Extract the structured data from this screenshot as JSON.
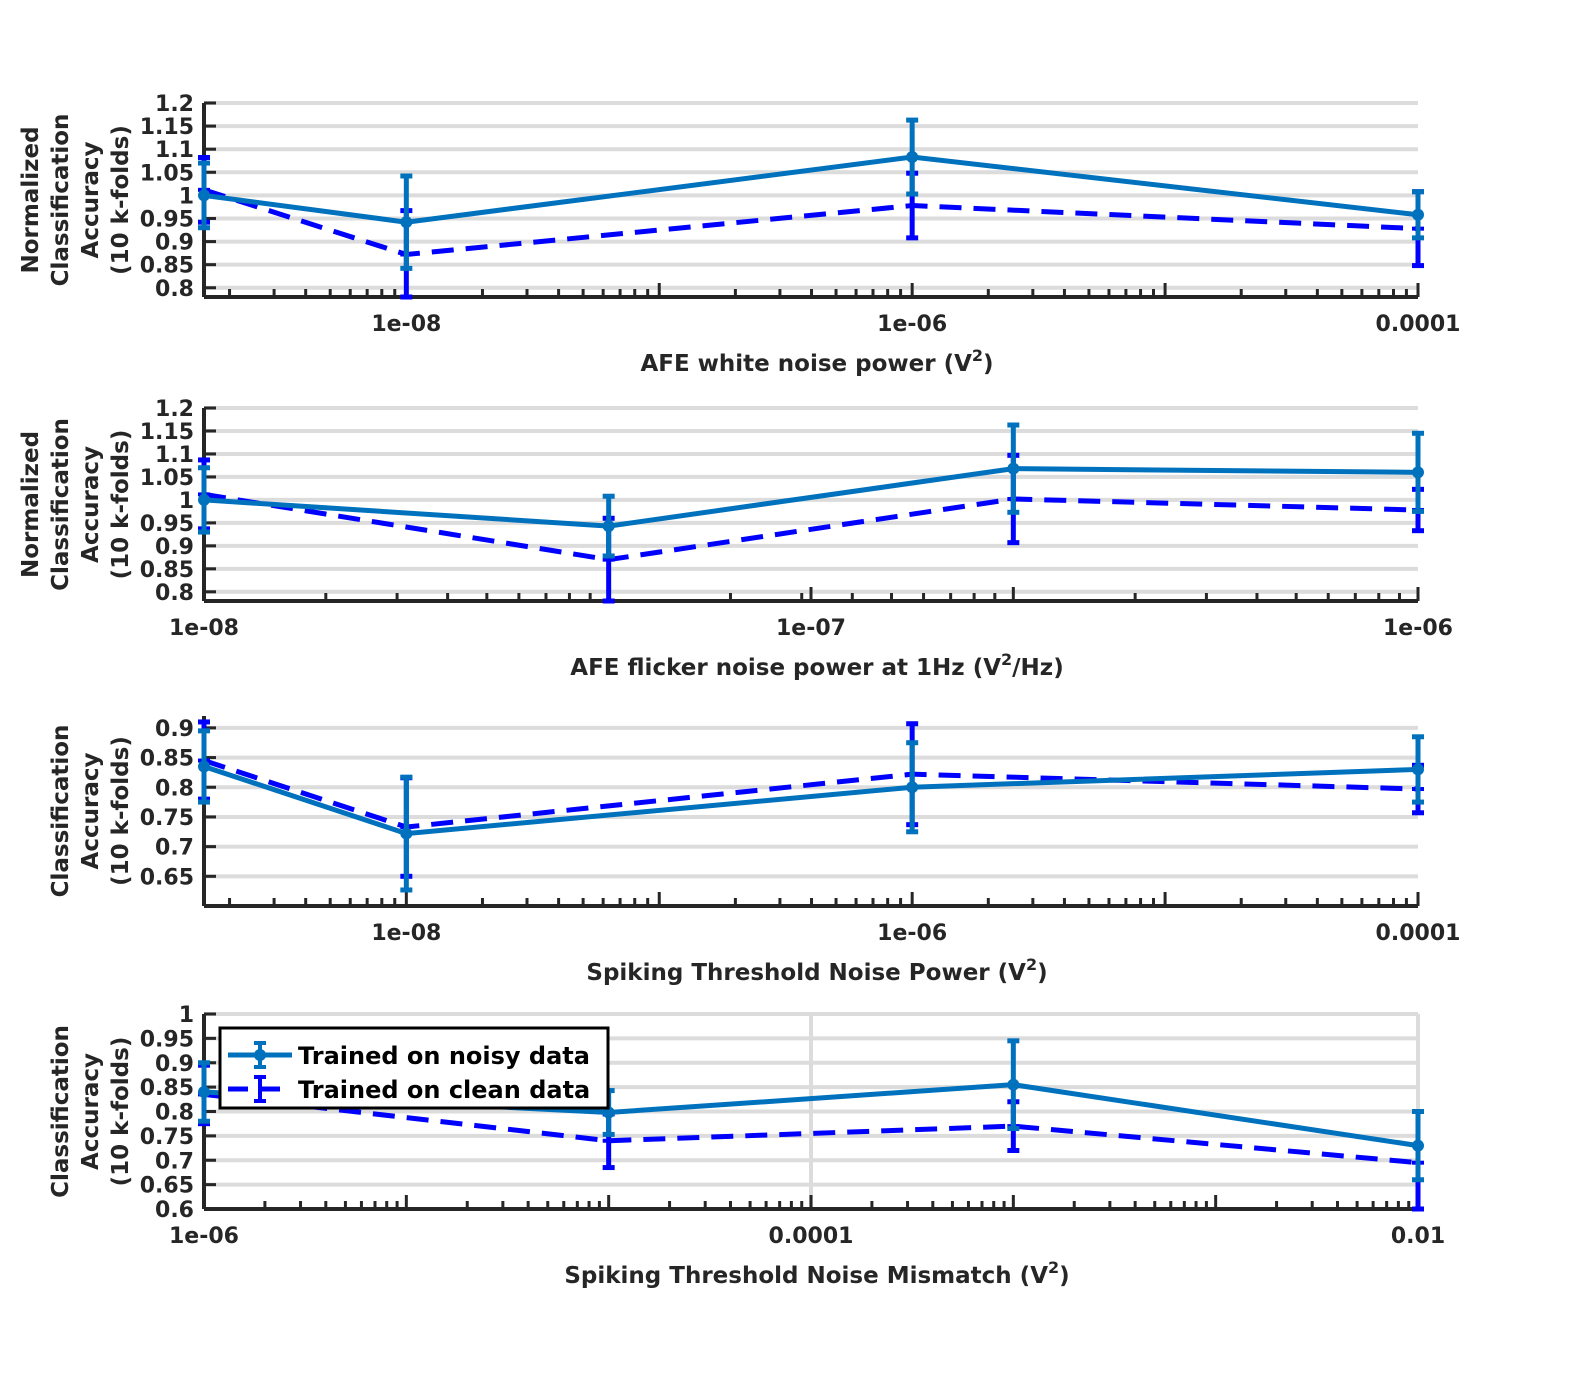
{
  "colors": {
    "noisy": "#0072BD",
    "clean": "#0000FF",
    "grid": "#dcdcdc",
    "axis": "#262626"
  },
  "legend": {
    "noisy_label": "Trained on noisy data",
    "clean_label": "Trained on clean data"
  },
  "chart_data": [
    {
      "type": "line",
      "xscale": "log",
      "xlabel": "AFE white noise power (V",
      "xlabel_sup": "2",
      "xlabel_after": ")",
      "ylabel_lines": [
        "Normalized",
        "Classification",
        "Accuracy",
        "(10 k-folds)"
      ],
      "xlim_exp": [
        -8.8,
        -4
      ],
      "ylim": [
        0.78,
        1.2
      ],
      "yticks": [
        "0.8",
        "0.85",
        "0.9",
        "0.95",
        "1",
        "1.05",
        "1.1",
        "1.15",
        "1.2"
      ],
      "xticks": [
        "1e-08",
        "1e-06",
        "0.0001"
      ],
      "xgrid": false,
      "series": [
        {
          "name": "Trained on noisy data",
          "style": "solid",
          "x_exp": [
            -8.8,
            -8,
            -6,
            -4
          ],
          "y": [
            1.0,
            0.942,
            1.083,
            0.958
          ],
          "err": [
            0.07,
            0.1,
            0.08,
            0.05
          ]
        },
        {
          "name": "Trained on clean data",
          "style": "dashed",
          "x_exp": [
            -8.8,
            -8,
            -6,
            -4
          ],
          "y": [
            1.012,
            0.872,
            0.978,
            0.928
          ],
          "err": [
            0.07,
            0.095,
            0.07,
            0.08
          ]
        }
      ]
    },
    {
      "type": "line",
      "xscale": "log",
      "xlabel": "AFE flicker noise power at 1Hz (V",
      "xlabel_sup": "2",
      "xlabel_after": "/Hz)",
      "ylabel_lines": [
        "Normalized",
        "Classification",
        "Accuracy",
        "(10 k-folds)"
      ],
      "xlim_exp": [
        -9,
        -6
      ],
      "ylim": [
        0.78,
        1.2
      ],
      "yticks": [
        "0.8",
        "0.85",
        "0.9",
        "0.95",
        "1",
        "1.05",
        "1.1",
        "1.15",
        "1.2"
      ],
      "xticks": [
        "1e-08",
        "1e-07",
        "1e-06"
      ],
      "xgrid": false,
      "series": [
        {
          "name": "Trained on noisy data",
          "style": "solid",
          "x_exp": [
            -9,
            -8,
            -7,
            -6
          ],
          "y": [
            1.0,
            0.943,
            1.068,
            1.06
          ],
          "err": [
            0.07,
            0.065,
            0.095,
            0.085
          ]
        },
        {
          "name": "Trained on clean data",
          "style": "dashed",
          "x_exp": [
            -9,
            -8,
            -7,
            -6
          ],
          "y": [
            1.012,
            0.87,
            1.002,
            0.978
          ],
          "err": [
            0.075,
            0.09,
            0.095,
            0.045
          ]
        }
      ]
    },
    {
      "type": "line",
      "xscale": "log",
      "xlabel": "Spiking Threshold Noise Power (V",
      "xlabel_sup": "2",
      "xlabel_after": ")",
      "ylabel_lines": [
        "Classification",
        "Accuracy",
        "(10 k-folds)"
      ],
      "xlim_exp": [
        -8.8,
        -4
      ],
      "ylim": [
        0.6,
        0.92
      ],
      "yticks": [
        "0.65",
        "0.7",
        "0.75",
        "0.8",
        "0.85",
        "0.9"
      ],
      "xticks": [
        "1e-08",
        "1e-06",
        "0.0001"
      ],
      "xgrid": false,
      "series": [
        {
          "name": "Trained on noisy data",
          "style": "solid",
          "x_exp": [
            -8.8,
            -8,
            -6,
            -4
          ],
          "y": [
            0.835,
            0.722,
            0.8,
            0.83
          ],
          "err": [
            0.06,
            0.095,
            0.075,
            0.055
          ]
        },
        {
          "name": "Trained on clean data",
          "style": "dashed",
          "x_exp": [
            -8.8,
            -8,
            -6,
            -4
          ],
          "y": [
            0.845,
            0.733,
            0.822,
            0.797
          ],
          "err": [
            0.065,
            0.083,
            0.085,
            0.04
          ]
        }
      ]
    },
    {
      "type": "line",
      "xscale": "log",
      "xlabel": "Spiking Threshold Noise Mismatch (V",
      "xlabel_sup": "2",
      "xlabel_after": ")",
      "ylabel_lines": [
        "Classification",
        "Accuracy",
        "(10 k-folds)"
      ],
      "xlim_exp": [
        -8,
        -2
      ],
      "ylim": [
        0.6,
        1.0
      ],
      "yticks": [
        "0.6",
        "0.65",
        "0.7",
        "0.75",
        "0.8",
        "0.85",
        "0.9",
        "0.95",
        "1"
      ],
      "xticks": [
        "1e-06",
        "0.0001",
        "0.01"
      ],
      "xgrid": true,
      "legend_position": "top-left",
      "series": [
        {
          "name": "Trained on noisy data",
          "style": "solid",
          "x_exp": [
            -8,
            -6,
            -4,
            -2
          ],
          "y": [
            0.84,
            0.798,
            0.855,
            0.73
          ],
          "err": [
            0.06,
            0.045,
            0.09,
            0.07
          ]
        },
        {
          "name": "Trained on clean data",
          "style": "dashed",
          "x_exp": [
            -8,
            -6,
            -4,
            -2
          ],
          "y": [
            0.835,
            0.74,
            0.77,
            0.695
          ],
          "err": [
            0.06,
            0.055,
            0.05,
            0.105
          ]
        }
      ]
    }
  ]
}
